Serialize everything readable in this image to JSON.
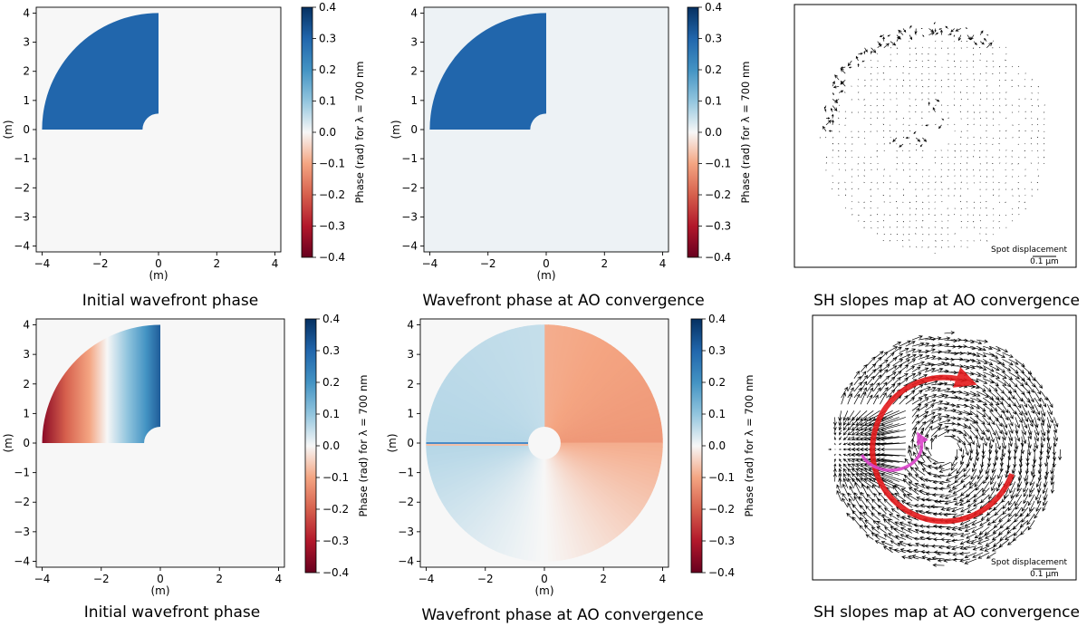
{
  "chart_data": [
    {
      "type": "heatmap",
      "panel": "top-left",
      "caption": "Initial wavefront phase",
      "xlabel": "(m)",
      "ylabel": "(m)",
      "xlim": [
        -4.2,
        4.2
      ],
      "ylim": [
        -4.2,
        4.2
      ],
      "xticks": [
        "−4",
        "−2",
        "0",
        "2",
        "4"
      ],
      "yticks": [
        "4",
        "3",
        "2",
        "1",
        "0",
        "−1",
        "−2",
        "−3",
        "−4"
      ],
      "pattern": "uniform",
      "segment_value_rad": 0.3,
      "background_value_rad": 0.0,
      "colorbar": {
        "label": "Phase (rad) for λ = 700 nm",
        "range": [
          -0.4,
          0.4
        ],
        "ticks": [
          "0.4",
          "0.3",
          "0.2",
          "0.1",
          "0.0",
          "−0.1",
          "−0.2",
          "−0.3",
          "−0.4"
        ],
        "colormap": "RdBu"
      }
    },
    {
      "type": "heatmap",
      "panel": "top-middle",
      "caption": "Wavefront phase at AO convergence",
      "xlabel": "(m)",
      "ylabel": "(m)",
      "xlim": [
        -4.2,
        4.2
      ],
      "ylim": [
        -4.2,
        4.2
      ],
      "xticks": [
        "−4",
        "−2",
        "0",
        "2",
        "4"
      ],
      "yticks": [
        "4",
        "3",
        "2",
        "1",
        "0",
        "−1",
        "−2",
        "−3",
        "−4"
      ],
      "pattern": "uniform",
      "segment_value_rad": 0.3,
      "background_value_rad": 0.01,
      "colorbar": {
        "label": "Phase (rad) for λ = 700 nm",
        "range": [
          -0.4,
          0.4
        ],
        "ticks": [
          "0.4",
          "0.3",
          "0.2",
          "0.1",
          "0.0",
          "−0.1",
          "−0.2",
          "−0.3",
          "−0.4"
        ],
        "colormap": "RdBu"
      }
    },
    {
      "type": "vector",
      "panel": "top-right",
      "caption": "SH slopes map at AO convergence",
      "scale_label": "Spot displacement",
      "scale_value": "0.1 µm",
      "pattern": "edge_spikes"
    },
    {
      "type": "heatmap",
      "panel": "bottom-left",
      "caption": "Initial wavefront phase",
      "xlabel": "(m)",
      "ylabel": "(m)",
      "xlim": [
        -4.2,
        4.2
      ],
      "ylim": [
        -4.2,
        4.2
      ],
      "xticks": [
        "−4",
        "−2",
        "0",
        "2",
        "4"
      ],
      "yticks": [
        "4",
        "3",
        "2",
        "1",
        "0",
        "−1",
        "−2",
        "−3",
        "−4"
      ],
      "pattern": "x_gradient",
      "segment_value_range_rad": [
        -0.4,
        0.4
      ],
      "background_value_rad": 0.0,
      "colorbar": {
        "label": "Phase (rad) for λ = 700 nm",
        "range": [
          -0.4,
          0.4
        ],
        "ticks": [
          "0.4",
          "0.3",
          "0.2",
          "0.1",
          "0.0",
          "−0.1",
          "−0.2",
          "−0.3",
          "−0.4"
        ],
        "colormap": "RdBu"
      }
    },
    {
      "type": "heatmap",
      "panel": "bottom-middle",
      "caption": "Wavefront phase at AO convergence",
      "xlabel": "(m)",
      "ylabel": "(m)",
      "xlim": [
        -4.2,
        4.2
      ],
      "ylim": [
        -4.2,
        4.2
      ],
      "xticks": [
        "−4",
        "−2",
        "0",
        "2",
        "4"
      ],
      "yticks": [
        "4",
        "3",
        "2",
        "1",
        "0",
        "−1",
        "−2",
        "−3",
        "−4"
      ],
      "pattern": "azimuthal_ramp",
      "ramp_values_rad": [
        0.12,
        -0.12
      ],
      "colorbar": {
        "label": "Phase (rad) for λ = 700 nm",
        "range": [
          -0.4,
          0.4
        ],
        "ticks": [
          "0.4",
          "0.3",
          "0.2",
          "0.1",
          "0.0",
          "−0.1",
          "−0.2",
          "−0.3",
          "−0.4"
        ],
        "colormap": "RdBu"
      }
    },
    {
      "type": "vector",
      "panel": "bottom-right",
      "caption": "SH slopes map at AO convergence",
      "scale_label": "Spot displacement",
      "scale_value": "0.1 µm",
      "pattern": "rotation",
      "annotations": [
        "large red clockwise arrow",
        "small magenta loop arrow"
      ],
      "colors": {
        "red_arrow": "#e41a1c",
        "magenta_arrow": "#dd44cc"
      }
    }
  ]
}
